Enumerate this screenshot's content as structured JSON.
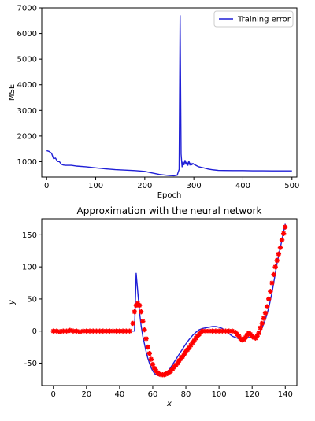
{
  "colors": {
    "blue": "#1f1fd6",
    "red": "#ff0000",
    "axis": "#000000"
  },
  "chart_data": [
    {
      "type": "line",
      "title": "",
      "xlabel": "Epoch",
      "ylabel": "MSE",
      "xlim": [
        -10,
        510
      ],
      "ylim": [
        400,
        7000
      ],
      "xticks": [
        0,
        100,
        200,
        300,
        400,
        500
      ],
      "yticks": [
        1000,
        2000,
        3000,
        4000,
        5000,
        6000,
        7000
      ],
      "legend": {
        "position": "top-right",
        "entries": [
          "Training error"
        ]
      },
      "series": [
        {
          "name": "Training error",
          "color": "#1f1fd6",
          "x": [
            0,
            5,
            10,
            14,
            18,
            22,
            26,
            30,
            34,
            38,
            42,
            50,
            60,
            80,
            100,
            120,
            140,
            160,
            180,
            200,
            210,
            220,
            230,
            240,
            250,
            260,
            266,
            270,
            272,
            274,
            276,
            278,
            280,
            282,
            284,
            286,
            288,
            290,
            292,
            294,
            296,
            298,
            300,
            305,
            310,
            320,
            330,
            340,
            350,
            360,
            380,
            400,
            420,
            440,
            460,
            480,
            500
          ],
          "y": [
            1430,
            1400,
            1330,
            1120,
            1140,
            1010,
            1000,
            900,
            870,
            860,
            860,
            860,
            830,
            800,
            760,
            720,
            690,
            670,
            650,
            620,
            580,
            540,
            500,
            480,
            460,
            450,
            470,
            700,
            6700,
            1300,
            800,
            1000,
            880,
            1050,
            900,
            1000,
            860,
            1020,
            870,
            960,
            880,
            930,
            900,
            850,
            800,
            760,
            710,
            680,
            660,
            655,
            650,
            650,
            645,
            645,
            640,
            640,
            640
          ]
        }
      ]
    },
    {
      "type": "line",
      "title": "Approximation with the neural network",
      "xlabel": "x",
      "ylabel": "y",
      "xlim": [
        -7,
        147
      ],
      "ylim": [
        -85,
        175
      ],
      "xticks": [
        0,
        20,
        40,
        60,
        80,
        100,
        120,
        140
      ],
      "yticks": [
        -50,
        0,
        50,
        100,
        150
      ],
      "series": [
        {
          "color": "#1f1fd6",
          "style": "line",
          "x": [
            0,
            5,
            10,
            15,
            20,
            25,
            30,
            35,
            40,
            45,
            48,
            49,
            50,
            51,
            52,
            53,
            54,
            55,
            56,
            57,
            58,
            59,
            60,
            61,
            62,
            63,
            64,
            65,
            66,
            67,
            68,
            69,
            70,
            72,
            74,
            76,
            78,
            80,
            82,
            84,
            86,
            88,
            90,
            92,
            94,
            96,
            98,
            100,
            102,
            104,
            106,
            108,
            110,
            112,
            114,
            116,
            118,
            120,
            122,
            124,
            126,
            128,
            130,
            132,
            134,
            135,
            136,
            137,
            138,
            139,
            140
          ],
          "y": [
            0,
            0,
            0,
            0,
            0,
            0,
            0,
            0,
            0,
            0,
            0,
            0,
            90,
            60,
            30,
            8,
            -8,
            -20,
            -32,
            -42,
            -50,
            -57,
            -62,
            -66,
            -68,
            -69,
            -70,
            -70,
            -69,
            -68,
            -66,
            -63,
            -60,
            -52,
            -44,
            -36,
            -28,
            -20,
            -13,
            -7,
            -2,
            2,
            4,
            5,
            6,
            7,
            7,
            6,
            4,
            0,
            -4,
            -8,
            -10,
            -12,
            -12,
            -11,
            -10,
            -10,
            -8,
            -3,
            5,
            18,
            36,
            60,
            90,
            105,
            118,
            130,
            142,
            155,
            167
          ]
        },
        {
          "color": "#ff0000",
          "style": "marker",
          "marker": "star",
          "x": [
            0,
            2,
            4,
            6,
            8,
            10,
            12,
            14,
            16,
            18,
            20,
            22,
            24,
            26,
            28,
            30,
            32,
            34,
            36,
            38,
            40,
            42,
            44,
            46,
            48,
            49,
            50,
            51,
            52,
            53,
            54,
            55,
            56,
            57,
            58,
            59,
            60,
            61,
            62,
            63,
            64,
            65,
            66,
            67,
            68,
            69,
            70,
            71,
            72,
            73,
            74,
            75,
            76,
            77,
            78,
            79,
            80,
            81,
            82,
            83,
            84,
            85,
            86,
            87,
            88,
            89,
            90,
            92,
            94,
            96,
            98,
            100,
            102,
            104,
            106,
            108,
            110,
            111,
            112,
            113,
            114,
            115,
            116,
            117,
            118,
            119,
            120,
            121,
            122,
            123,
            124,
            125,
            126,
            127,
            128,
            129,
            130,
            131,
            132,
            133,
            134,
            135,
            136,
            137,
            138,
            139,
            140
          ],
          "y": [
            0,
            0,
            -1,
            0,
            0,
            1,
            0,
            0,
            -1,
            0,
            0,
            0,
            0,
            0,
            0,
            0,
            0,
            0,
            0,
            0,
            0,
            0,
            0,
            0,
            12,
            30,
            40,
            43,
            40,
            30,
            15,
            2,
            -12,
            -25,
            -35,
            -44,
            -52,
            -58,
            -62,
            -65,
            -67,
            -68,
            -68,
            -68,
            -67,
            -66,
            -64,
            -62,
            -59,
            -56,
            -53,
            -50,
            -46,
            -43,
            -40,
            -36,
            -32,
            -29,
            -26,
            -22,
            -18,
            -15,
            -11,
            -8,
            -5,
            -2,
            0,
            0,
            0,
            0,
            0,
            0,
            0,
            0,
            0,
            0,
            -2,
            -5,
            -8,
            -12,
            -14,
            -13,
            -10,
            -6,
            -3,
            -5,
            -8,
            -10,
            -11,
            -8,
            -3,
            5,
            12,
            20,
            28,
            38,
            50,
            62,
            75,
            88,
            100,
            110,
            120,
            130,
            142,
            152,
            162
          ]
        }
      ]
    }
  ]
}
